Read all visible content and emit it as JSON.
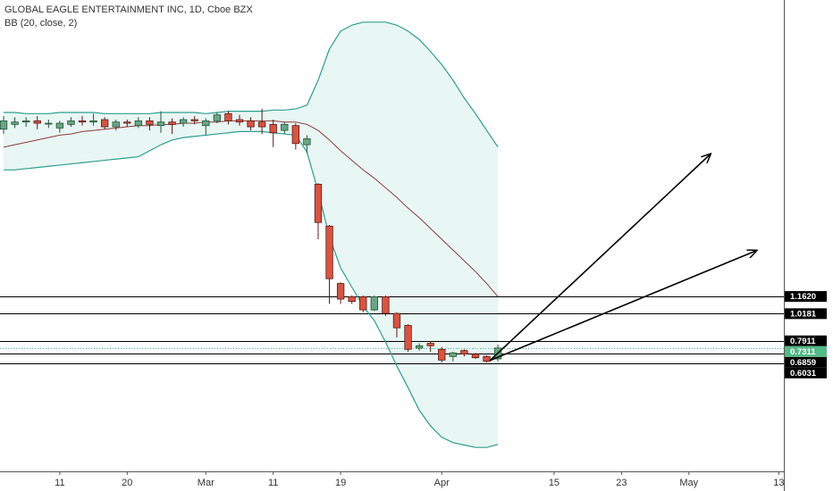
{
  "chart_data": {
    "type": "candlestick",
    "title": "GLOBAL EAGLE ENTERTAINMENT INC, 1D, Cboe BZX",
    "subtitle": "BB (20, close, 2)",
    "x": [
      0,
      1,
      2,
      3,
      4,
      5,
      6,
      7,
      8,
      9,
      10,
      11,
      12,
      13,
      14,
      15,
      16,
      17,
      18,
      19,
      20,
      21,
      22,
      23,
      24,
      25,
      26,
      27,
      28,
      29,
      30,
      31,
      32,
      33,
      34,
      35,
      36,
      37,
      38,
      39,
      40,
      41,
      42,
      43,
      44
    ],
    "open": [
      2.56,
      2.6,
      2.62,
      2.63,
      2.61,
      2.57,
      2.6,
      2.63,
      2.62,
      2.64,
      2.58,
      2.62,
      2.59,
      2.63,
      2.59,
      2.62,
      2.61,
      2.64,
      2.59,
      2.63,
      2.69,
      2.64,
      2.63,
      2.62,
      2.6,
      2.55,
      2.59,
      2.43,
      2.1,
      1.75,
      1.27,
      1.16,
      1.16,
      1.05,
      1.16,
      1.02,
      0.92,
      0.73,
      0.77,
      0.72,
      0.66,
      0.71,
      0.68,
      0.66,
      0.64
    ],
    "high": [
      2.67,
      2.66,
      2.66,
      2.67,
      2.64,
      2.63,
      2.66,
      2.67,
      2.69,
      2.66,
      2.64,
      2.64,
      2.66,
      2.66,
      2.71,
      2.65,
      2.66,
      2.67,
      2.65,
      2.7,
      2.71,
      2.68,
      2.66,
      2.73,
      2.64,
      2.62,
      2.61,
      2.51,
      2.11,
      1.76,
      1.28,
      1.17,
      1.17,
      1.17,
      1.17,
      1.03,
      0.93,
      0.77,
      0.79,
      0.74,
      0.7,
      0.72,
      0.69,
      0.67,
      0.76
    ],
    "low": [
      2.52,
      2.57,
      2.58,
      2.56,
      2.57,
      2.53,
      2.58,
      2.59,
      2.59,
      2.56,
      2.55,
      2.58,
      2.57,
      2.55,
      2.53,
      2.52,
      2.58,
      2.6,
      2.51,
      2.61,
      2.6,
      2.59,
      2.55,
      2.52,
      2.41,
      2.52,
      2.39,
      2.36,
      1.64,
      1.1,
      1.1,
      1.1,
      1.03,
      1.04,
      1.0,
      0.82,
      0.7,
      0.71,
      0.7,
      0.61,
      0.62,
      0.66,
      0.64,
      0.61,
      0.62
    ],
    "close": [
      2.63,
      2.62,
      2.63,
      2.61,
      2.61,
      2.61,
      2.63,
      2.62,
      2.63,
      2.58,
      2.62,
      2.61,
      2.63,
      2.6,
      2.62,
      2.6,
      2.64,
      2.63,
      2.63,
      2.68,
      2.63,
      2.62,
      2.58,
      2.58,
      2.53,
      2.6,
      2.44,
      2.48,
      1.78,
      1.31,
      1.14,
      1.12,
      1.05,
      1.16,
      1.02,
      0.9,
      0.72,
      0.75,
      0.75,
      0.63,
      0.69,
      0.68,
      0.65,
      0.62,
      0.7311
    ],
    "up_color": "#6ba583",
    "down_color": "#d75442",
    "bands": {
      "upper": [
        2.7,
        2.7,
        2.69,
        2.69,
        2.69,
        2.7,
        2.7,
        2.7,
        2.7,
        2.69,
        2.69,
        2.69,
        2.69,
        2.69,
        2.7,
        2.7,
        2.7,
        2.7,
        2.69,
        2.7,
        2.71,
        2.71,
        2.71,
        2.71,
        2.72,
        2.72,
        2.73,
        2.76,
        2.97,
        3.23,
        3.38,
        3.43,
        3.455,
        3.455,
        3.455,
        3.43,
        3.38,
        3.31,
        3.21,
        3.1,
        2.97,
        2.82,
        2.69,
        2.55,
        2.41
      ],
      "basis": [
        2.41,
        2.43,
        2.45,
        2.47,
        2.49,
        2.51,
        2.52,
        2.54,
        2.55,
        2.56,
        2.57,
        2.58,
        2.59,
        2.59,
        2.6,
        2.6,
        2.61,
        2.61,
        2.62,
        2.62,
        2.63,
        2.63,
        2.63,
        2.63,
        2.63,
        2.62,
        2.62,
        2.6,
        2.55,
        2.47,
        2.38,
        2.3,
        2.22,
        2.15,
        2.07,
        1.99,
        1.9,
        1.82,
        1.73,
        1.64,
        1.55,
        1.46,
        1.37,
        1.27,
        1.16
      ],
      "lower": [
        2.22,
        2.22,
        2.23,
        2.24,
        2.25,
        2.26,
        2.27,
        2.28,
        2.29,
        2.3,
        2.31,
        2.32,
        2.33,
        2.38,
        2.43,
        2.47,
        2.49,
        2.5,
        2.51,
        2.52,
        2.53,
        2.54,
        2.54,
        2.54,
        2.53,
        2.52,
        2.51,
        2.37,
        2.04,
        1.66,
        1.4,
        1.24,
        1.08,
        0.96,
        0.78,
        0.58,
        0.4,
        0.21,
        0.08,
        -0.015,
        -0.06,
        -0.08,
        -0.1,
        -0.1,
        -0.075
      ],
      "band_color": "#2e9e8f",
      "basis_color": "#8e3b3b",
      "fill_color": "#e8f6f4"
    },
    "xlim": [
      -0.32,
      69.45
    ],
    "xticks": [
      {
        "value": 5,
        "label": "11"
      },
      {
        "value": 11,
        "label": "20"
      },
      {
        "value": 18,
        "label": "Mar"
      },
      {
        "value": 24,
        "label": "11"
      },
      {
        "value": 30,
        "label": "19"
      },
      {
        "value": 39,
        "label": "Apr"
      },
      {
        "value": 49,
        "label": "15"
      },
      {
        "value": 55,
        "label": "23"
      },
      {
        "value": 61,
        "label": "May"
      },
      {
        "value": 69,
        "label": "13"
      }
    ],
    "ylim": [
      -0.3,
      3.64
    ],
    "hlines": [
      {
        "value": 1.162,
        "label": "1.1620"
      },
      1.0181,
      0.7911,
      0.6859,
      0.6031
    ],
    "last_price": 0.7311,
    "last_price_color": "#53b987",
    "arrows": [
      {
        "x": [
          43.3,
          62.9
        ],
        "y": [
          0.627,
          2.351
        ]
      },
      {
        "x": [
          43.3,
          67.0
        ],
        "y": [
          0.627,
          1.545
        ]
      }
    ]
  }
}
